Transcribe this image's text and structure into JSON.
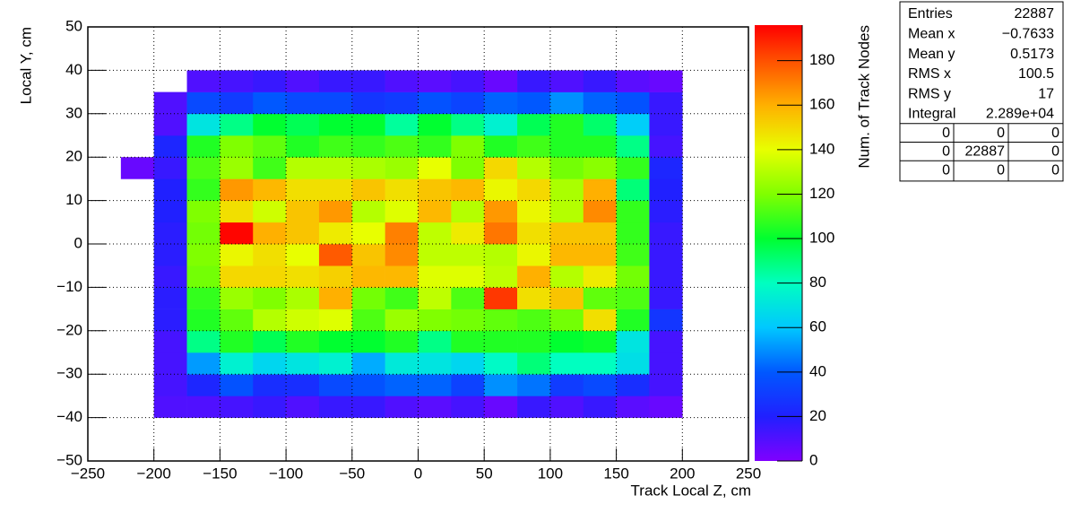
{
  "chart_data": {
    "type": "heatmap",
    "xlabel": "Track Local Z, cm",
    "ylabel": "Local Y, cm",
    "zlabel": "Num. of Track Nodes",
    "xlim": [
      -250,
      250
    ],
    "ylim": [
      -50,
      50
    ],
    "zlim": [
      0,
      196
    ],
    "xticks": [
      {
        "value": -250,
        "label": "−250"
      },
      {
        "value": -200,
        "label": "−200"
      },
      {
        "value": -150,
        "label": "−150"
      },
      {
        "value": -100,
        "label": "−100"
      },
      {
        "value": -50,
        "label": "−50"
      },
      0,
      50,
      100,
      150,
      200,
      250
    ],
    "yticks": [
      {
        "value": -50,
        "label": "−50"
      },
      {
        "value": -40,
        "label": "−40"
      },
      {
        "value": -30,
        "label": "−30"
      },
      {
        "value": -20,
        "label": "−20"
      },
      {
        "value": -10,
        "label": "−10"
      },
      0,
      10,
      20,
      30,
      40,
      50
    ],
    "zticks": [
      0,
      20,
      40,
      60,
      80,
      100,
      120,
      140,
      160,
      180
    ],
    "grid": true,
    "colorscale": [
      [
        0,
        "#8000ff"
      ],
      [
        20,
        "#2020ff"
      ],
      [
        40,
        "#0058ff"
      ],
      [
        60,
        "#00c8ff"
      ],
      [
        80,
        "#00ffc0"
      ],
      [
        100,
        "#00ff30"
      ],
      [
        120,
        "#80ff00"
      ],
      [
        140,
        "#e8ff00"
      ],
      [
        160,
        "#ffb000"
      ],
      [
        180,
        "#ff5000"
      ],
      [
        196,
        "#ff0000"
      ]
    ],
    "x_bins": [
      -225,
      -200,
      -175,
      -150,
      -125,
      -100,
      -75,
      -50,
      -25,
      0,
      25,
      50,
      75,
      100,
      125,
      150,
      175,
      200
    ],
    "y_bins": [
      -40,
      -35,
      -30,
      -25,
      -20,
      -15,
      -10,
      -5,
      0,
      5,
      10,
      15,
      20,
      25,
      30,
      35,
      40
    ],
    "z": [
      [
        null,
        10,
        10,
        12,
        15,
        10,
        15,
        15,
        10,
        8,
        12,
        5,
        15,
        10,
        15,
        8,
        5
      ],
      [
        null,
        12,
        22,
        38,
        25,
        25,
        35,
        38,
        42,
        42,
        32,
        50,
        45,
        30,
        35,
        25,
        12
      ],
      [
        null,
        12,
        52,
        75,
        65,
        70,
        75,
        55,
        72,
        70,
        65,
        78,
        90,
        80,
        80,
        68,
        12
      ],
      [
        null,
        12,
        88,
        105,
        95,
        105,
        100,
        100,
        105,
        88,
        105,
        105,
        105,
        100,
        102,
        70,
        12
      ],
      [
        null,
        18,
        105,
        115,
        130,
        135,
        138,
        112,
        125,
        120,
        118,
        115,
        112,
        118,
        148,
        105,
        28
      ],
      [
        null,
        18,
        108,
        125,
        120,
        128,
        160,
        118,
        110,
        132,
        112,
        185,
        148,
        155,
        115,
        112,
        15
      ],
      [
        null,
        15,
        118,
        150,
        150,
        148,
        152,
        158,
        158,
        138,
        138,
        132,
        160,
        130,
        145,
        118,
        15
      ],
      [
        null,
        18,
        120,
        142,
        148,
        140,
        178,
        155,
        168,
        132,
        132,
        130,
        142,
        158,
        158,
        110,
        15
      ],
      [
        null,
        18,
        118,
        195,
        160,
        155,
        145,
        140,
        170,
        132,
        145,
        172,
        148,
        155,
        155,
        108,
        15
      ],
      [
        null,
        20,
        120,
        148,
        135,
        155,
        165,
        130,
        138,
        158,
        130,
        165,
        142,
        130,
        168,
        108,
        18
      ],
      [
        null,
        20,
        108,
        165,
        158,
        148,
        148,
        155,
        148,
        155,
        158,
        142,
        150,
        128,
        160,
        90,
        20
      ],
      [
        5,
        15,
        112,
        125,
        110,
        130,
        130,
        128,
        125,
        140,
        120,
        150,
        130,
        118,
        122,
        108,
        22
      ],
      [
        null,
        22,
        105,
        120,
        115,
        105,
        110,
        108,
        112,
        108,
        120,
        105,
        110,
        105,
        105,
        88,
        12
      ],
      [
        null,
        10,
        70,
        88,
        100,
        95,
        100,
        100,
        85,
        100,
        88,
        75,
        95,
        105,
        92,
        62,
        15
      ],
      [
        null,
        10,
        35,
        30,
        40,
        35,
        35,
        28,
        30,
        38,
        33,
        42,
        40,
        50,
        42,
        38,
        15
      ],
      [
        null,
        null,
        10,
        12,
        15,
        10,
        15,
        15,
        10,
        8,
        12,
        5,
        15,
        10,
        15,
        8,
        5
      ]
    ],
    "stats": {
      "rows": [
        [
          "Entries",
          "22887"
        ],
        [
          "Mean x",
          "−0.7633"
        ],
        [
          "Mean y",
          "0.5173"
        ],
        [
          "RMS x",
          "100.5"
        ],
        [
          "RMS y",
          "17"
        ],
        [
          "Integral",
          "2.289e+04"
        ]
      ],
      "table": [
        [
          "0",
          "0",
          "0"
        ],
        [
          "0",
          "22887",
          "0"
        ],
        [
          "0",
          "0",
          "0"
        ]
      ]
    }
  }
}
